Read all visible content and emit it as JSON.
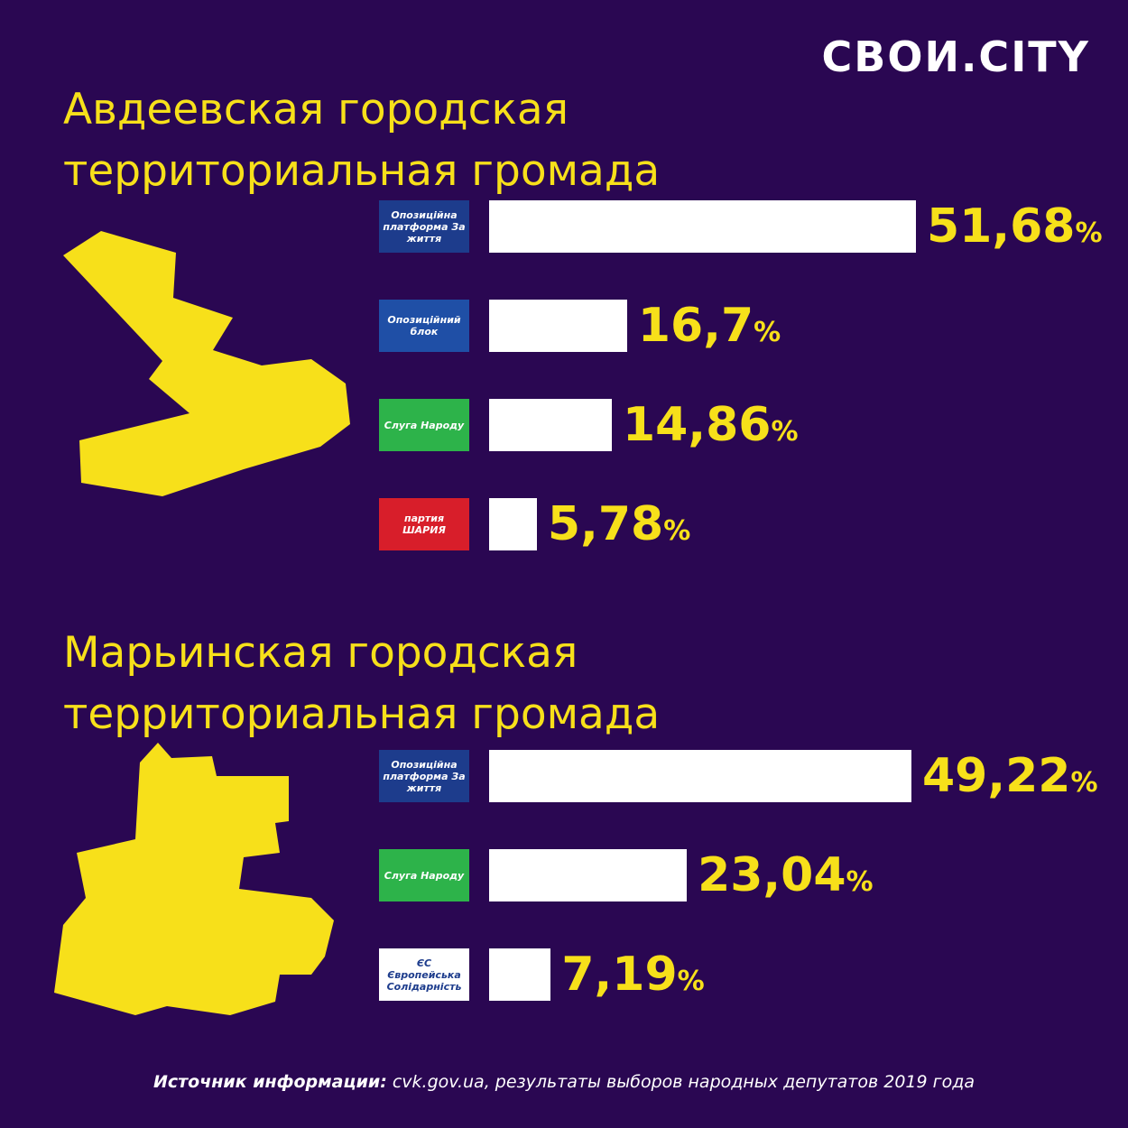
{
  "brand": "СВОИ.CITY",
  "chart_data": [
    {
      "type": "bar",
      "title": "Авдеевская городская территориальная громада",
      "categories": [
        "Опозиційна платформа За життя",
        "Опозиційний блок",
        "Слуга Народу",
        "партия ШАРИЯ"
      ],
      "category_colors": [
        "#1d3c8c",
        "#1f4fa6",
        "#2db34a",
        "#d81e2a"
      ],
      "values": [
        51.68,
        16.7,
        14.86,
        5.78
      ],
      "value_labels": [
        "51,68%",
        "16,7%",
        "14,86%",
        "5,78%"
      ],
      "color": "#ffffff"
    },
    {
      "type": "bar",
      "title": "Марьинская городская территориальная громада",
      "categories": [
        "Опозиційна платформа За життя",
        "Слуга Народу",
        "ЄС Європейська Солідарність"
      ],
      "category_colors": [
        "#1d3c8c",
        "#2db34a",
        "#ffffff"
      ],
      "values": [
        49.22,
        23.04,
        7.19
      ],
      "value_labels": [
        "49,22%",
        "23,04%",
        "7,19%"
      ],
      "color": "#ffffff"
    }
  ],
  "footer": {
    "label": "Источник информации:",
    "text": "cvk.gov.ua, результаты выборов народных депутатов 2019 года"
  }
}
